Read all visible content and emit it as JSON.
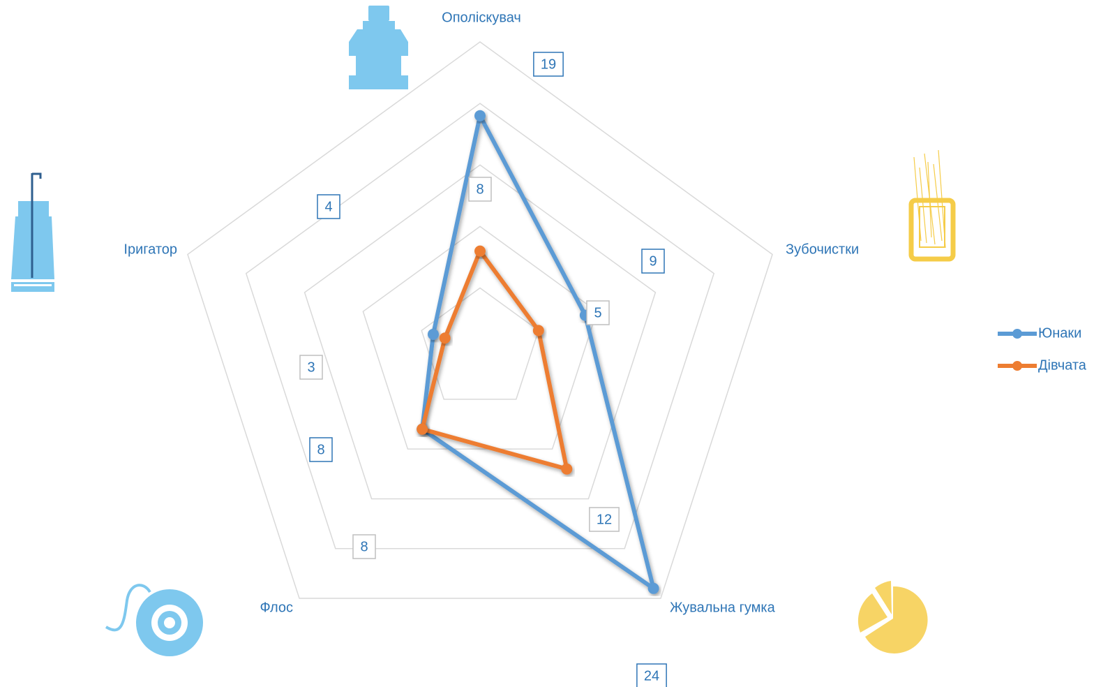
{
  "chart_data": {
    "type": "radar",
    "categories": [
      "Ополіскувач",
      "Зубочистки",
      "Жувальна гумка",
      "Флос",
      "Іригатор"
    ],
    "series": [
      {
        "name": "Юнаки",
        "color": "#5b9bd5",
        "values": [
          19,
          9,
          24,
          8,
          4
        ]
      },
      {
        "name": "Дівчата",
        "color": "#ed7d31",
        "values": [
          8,
          5,
          12,
          8,
          3
        ]
      }
    ],
    "rlim": [
      0,
      25
    ],
    "rticks": [
      5,
      10,
      15,
      20,
      25
    ],
    "grid": true,
    "legend": "right"
  }
}
